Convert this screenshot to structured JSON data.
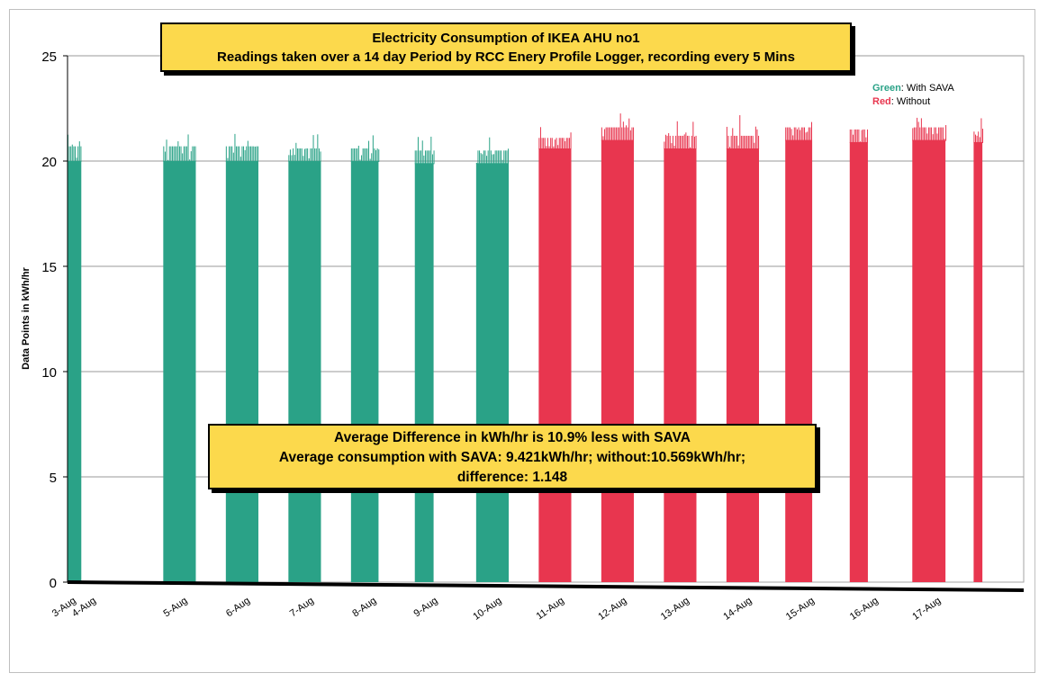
{
  "chart_data": {
    "type": "bar",
    "title_lines": [
      "Electricity Consumption of IKEA AHU no1",
      "Readings taken over a 14 day Period by RCC Enery Profile Logger, recording every 5 Mins"
    ],
    "ylabel": "Data Points in kWh/hr",
    "ylim": [
      0,
      25
    ],
    "y_ticks": [
      0,
      5,
      10,
      15,
      20,
      25
    ],
    "grid": true,
    "x_tick_labels": [
      "3-Aug",
      "4-Aug",
      "5-Aug",
      "6-Aug",
      "7-Aug",
      "8-Aug",
      "9-Aug",
      "10-Aug",
      "11-Aug",
      "12-Aug",
      "13-Aug",
      "14-Aug",
      "15-Aug",
      "16-Aug",
      "17-Aug"
    ],
    "legend": {
      "placement": "top-right",
      "entries": [
        {
          "key": "Green",
          "text": ": With SAVA",
          "color": "#2aa287"
        },
        {
          "key": "Red",
          "text": ": Without",
          "color": "#e8364f"
        }
      ]
    },
    "series": [
      {
        "name": "With SAVA",
        "color": "#2aa287",
        "blocks": [
          {
            "start": 3.0,
            "end": 3.22,
            "base": 20.0,
            "mid": 20.7,
            "peak": 21.3
          },
          {
            "start": 4.53,
            "end": 5.05,
            "base": 20.0,
            "mid": 20.7,
            "peak": 21.3
          },
          {
            "start": 5.53,
            "end": 6.05,
            "base": 20.0,
            "mid": 20.7,
            "peak": 21.3
          },
          {
            "start": 6.53,
            "end": 7.05,
            "base": 20.0,
            "mid": 20.6,
            "peak": 21.3
          },
          {
            "start": 7.53,
            "end": 7.97,
            "base": 20.0,
            "mid": 20.6,
            "peak": 21.3
          },
          {
            "start": 8.55,
            "end": 8.85,
            "base": 19.9,
            "mid": 20.5,
            "peak": 21.2
          },
          {
            "start": 9.53,
            "end": 10.05,
            "base": 19.9,
            "mid": 20.5,
            "peak": 21.2
          }
        ]
      },
      {
        "name": "Without",
        "color": "#e8364f",
        "blocks": [
          {
            "start": 10.53,
            "end": 11.05,
            "base": 20.6,
            "mid": 21.1,
            "peak": 21.8
          },
          {
            "start": 11.53,
            "end": 12.05,
            "base": 21.0,
            "mid": 21.6,
            "peak": 22.3
          },
          {
            "start": 12.53,
            "end": 13.05,
            "base": 20.6,
            "mid": 21.2,
            "peak": 21.9
          },
          {
            "start": 13.53,
            "end": 14.05,
            "base": 20.6,
            "mid": 21.2,
            "peak": 22.3
          },
          {
            "start": 14.47,
            "end": 14.9,
            "base": 21.0,
            "mid": 21.6,
            "peak": 22.3
          },
          {
            "start": 15.5,
            "end": 15.79,
            "base": 20.9,
            "mid": 21.5,
            "peak": 22.3
          },
          {
            "start": 16.5,
            "end": 17.03,
            "base": 21.0,
            "mid": 21.6,
            "peak": 22.2
          },
          {
            "start": 17.48,
            "end": 17.62,
            "base": 20.9,
            "mid": 21.4,
            "peak": 22.2
          }
        ]
      }
    ],
    "annotation_lines": [
      "Average Difference in kWh/hr is 10.9% less with SAVA",
      "Average consumption with SAVA: 9.421kWh/hr; without:10.569kWh/hr;",
      "difference: 1.148"
    ]
  }
}
